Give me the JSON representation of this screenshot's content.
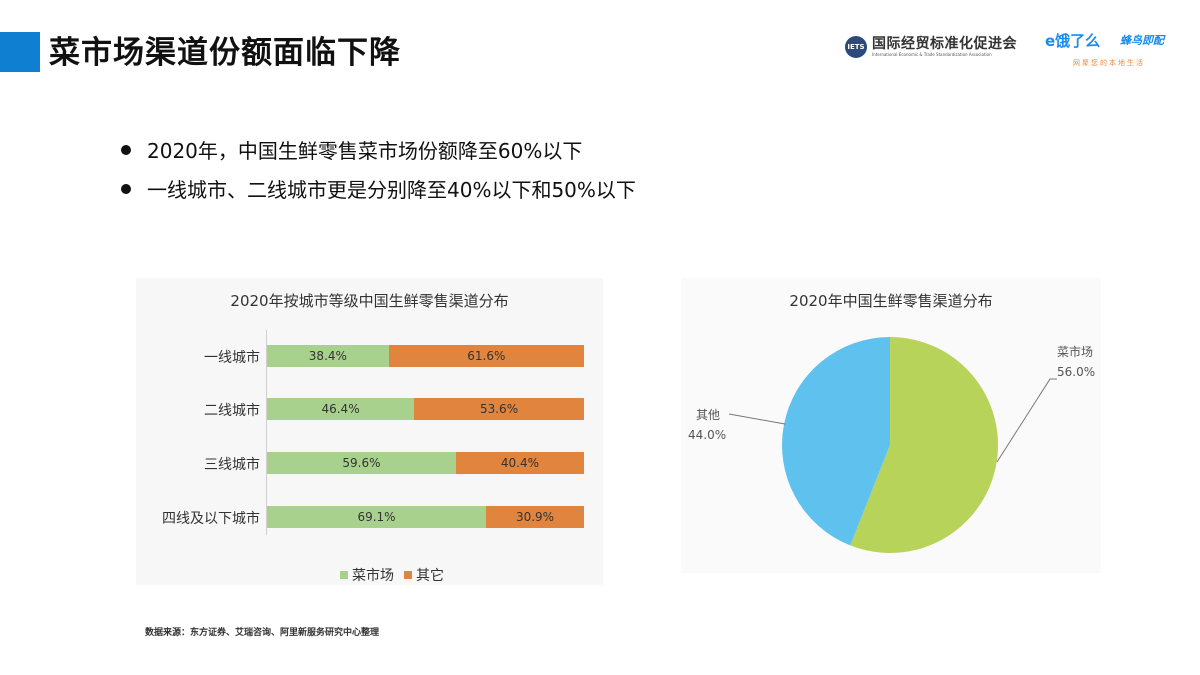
{
  "header": {
    "title": "菜市场渠道份额面临下降",
    "accent_color": "#0e7fd1",
    "logos": {
      "ietsa_cn": "国际经贸标准化促进会",
      "ietsa_en": "International Economic & Trade Standardization Association",
      "ietsa_mark": "IETS",
      "eleme": "e饿了么",
      "fengniao": "蜂鸟即配",
      "slogan": "网聚您的本地生活"
    }
  },
  "bullets": [
    "2020年，中国生鲜零售菜市场份额降至60%以下",
    "一线城市、二线城市更是分别降至40%以下和50%以下"
  ],
  "source": "数据来源：东方证券、艾瑞咨询、阿里新服务研究中心整理",
  "chart_data": [
    {
      "type": "bar",
      "stacked": true,
      "orientation": "horizontal",
      "title": "2020年按城市等级中国生鲜零售渠道分布",
      "categories": [
        "一线城市",
        "二线城市",
        "三线城市",
        "四线及以下城市"
      ],
      "series": [
        {
          "name": "菜市场",
          "color": "#a9d18e",
          "values": [
            38.4,
            46.4,
            59.6,
            69.1
          ],
          "labels": [
            "38.4%",
            "46.4%",
            "59.6%",
            "69.1%"
          ]
        },
        {
          "name": "其它",
          "color": "#e0843e",
          "values": [
            61.6,
            53.6,
            40.4,
            30.9
          ],
          "labels": [
            "61.6%",
            "53.6%",
            "40.4%",
            "30.9%"
          ]
        }
      ],
      "xlim": [
        0,
        100
      ],
      "grid": false,
      "legend_position": "bottom",
      "legend": [
        "菜市场",
        "其它"
      ]
    },
    {
      "type": "pie",
      "title": "2020年中国生鲜零售渠道分布",
      "categories": [
        "菜市场",
        "其他"
      ],
      "values": [
        56.0,
        44.0
      ],
      "labels": [
        "56.0%",
        "44.0%"
      ],
      "colors": [
        "#b8d35a",
        "#5fc2ee"
      ]
    }
  ]
}
